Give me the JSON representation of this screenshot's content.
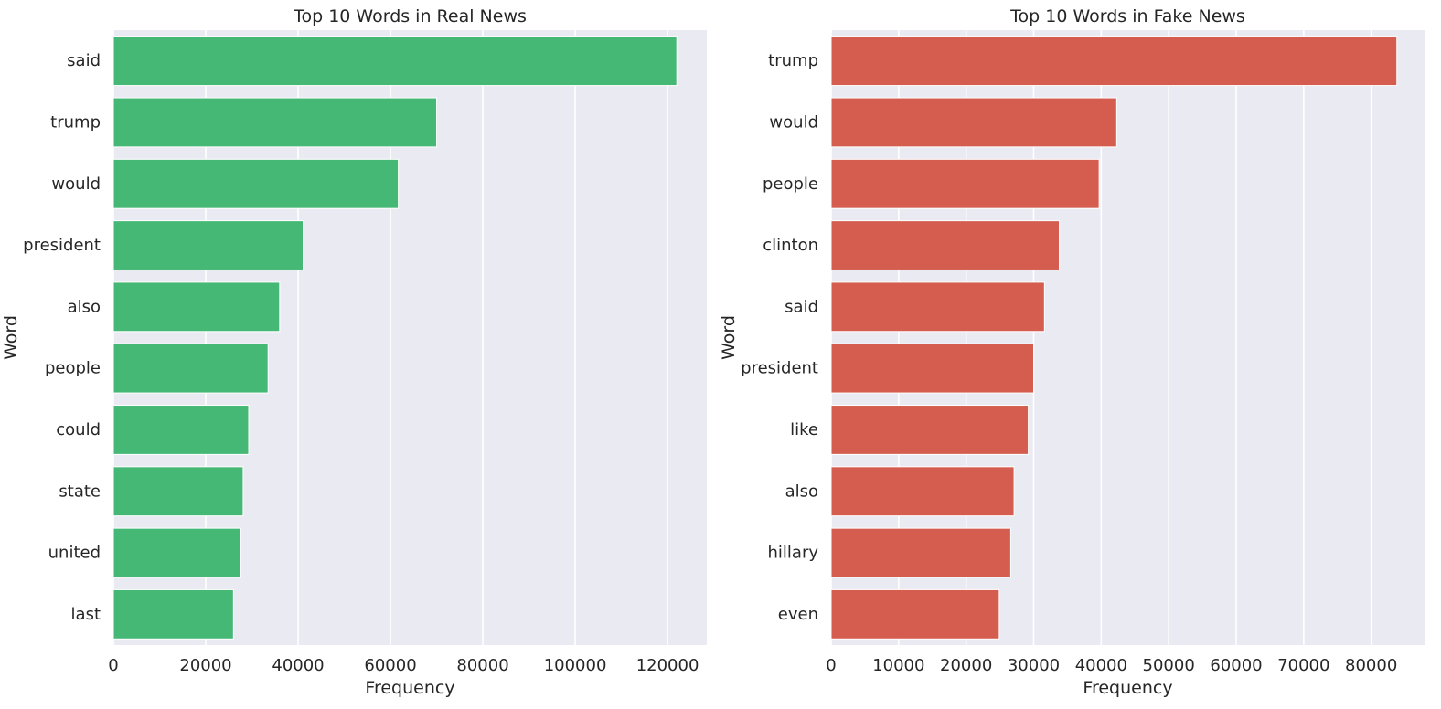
{
  "chart_data": [
    {
      "type": "bar",
      "orientation": "horizontal",
      "title": "Top 10 Words in Real News",
      "xlabel": "Frequency",
      "ylabel": "Word",
      "color": "#44B874",
      "categories": [
        "said",
        "trump",
        "would",
        "president",
        "also",
        "people",
        "could",
        "state",
        "united",
        "last"
      ],
      "values": [
        122000,
        70000,
        61700,
        41100,
        36000,
        33500,
        29300,
        28100,
        27600,
        26000
      ],
      "xlim": [
        0,
        128500
      ],
      "xticks": [
        0,
        20000,
        40000,
        60000,
        80000,
        100000,
        120000
      ],
      "grid": true
    },
    {
      "type": "bar",
      "orientation": "horizontal",
      "title": "Top 10 Words in Fake News",
      "xlabel": "Frequency",
      "ylabel": "Word",
      "color": "#D45D50",
      "categories": [
        "trump",
        "would",
        "people",
        "clinton",
        "said",
        "president",
        "like",
        "also",
        "hillary",
        "even"
      ],
      "values": [
        83800,
        42300,
        39700,
        33800,
        31600,
        30000,
        29200,
        27100,
        26600,
        24900
      ],
      "xlim": [
        0,
        87900
      ],
      "xticks": [
        0,
        10000,
        20000,
        30000,
        40000,
        50000,
        60000,
        70000,
        80000
      ],
      "grid": true
    }
  ]
}
